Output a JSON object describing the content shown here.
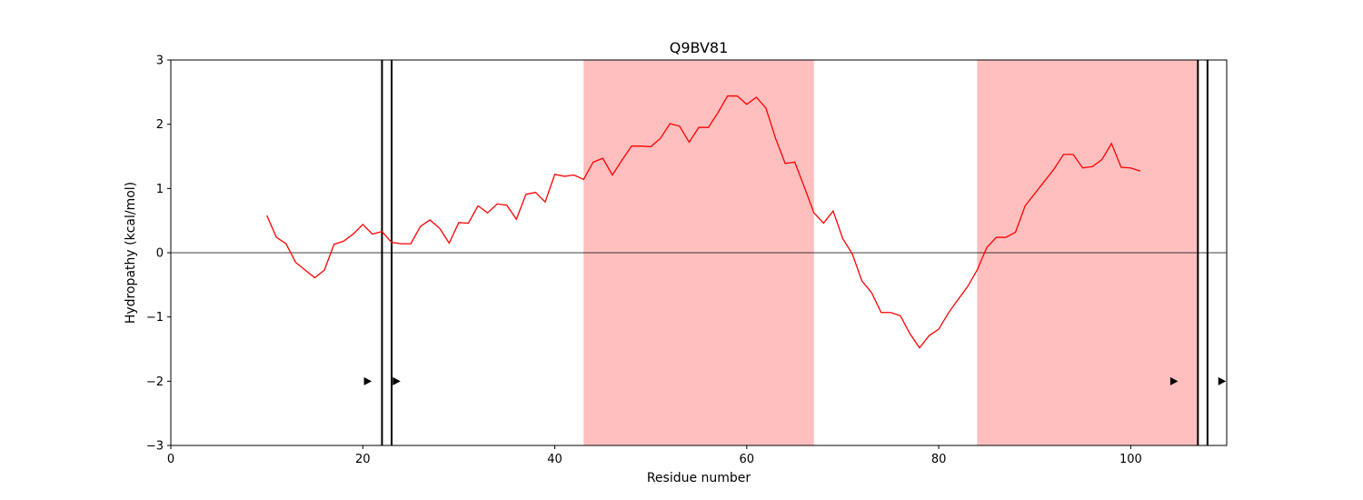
{
  "chart_data": {
    "type": "line",
    "title": "Q9BV81",
    "xlabel": "Residue number",
    "ylabel": "Hydropathy (kcal/mol)",
    "xlim": [
      0,
      110
    ],
    "ylim": [
      -3,
      3
    ],
    "xticks": [
      0,
      20,
      40,
      60,
      80,
      100
    ],
    "yticks": [
      -3,
      -2,
      -1,
      0,
      1,
      2,
      3
    ],
    "grid": false,
    "line_color": "#ff0000",
    "shade_color": "#ffbfbf",
    "zero_line": 0,
    "shaded_regions": [
      [
        43,
        67
      ],
      [
        84,
        107
      ]
    ],
    "vertical_lines": [
      22,
      23,
      107,
      108
    ],
    "arrow_markers": [
      {
        "x": 20.5,
        "y": -2
      },
      {
        "x": 23.5,
        "y": -2
      },
      {
        "x": 104.5,
        "y": -2
      },
      {
        "x": 109.5,
        "y": -2
      }
    ],
    "series": [
      {
        "x": [
          10,
          11,
          12,
          13,
          14,
          15,
          16,
          17,
          18,
          19,
          20,
          21,
          22,
          23,
          24,
          25,
          26,
          27,
          28,
          29,
          30,
          31,
          32,
          33,
          34,
          35,
          36,
          37,
          38,
          39,
          40,
          41,
          42,
          43,
          44,
          45,
          46,
          47,
          48,
          49,
          50,
          51,
          52,
          53,
          54,
          55,
          56,
          57,
          58,
          59,
          60,
          61,
          62,
          63,
          64,
          65,
          66,
          67,
          68,
          69,
          70,
          71,
          72,
          73,
          74,
          75,
          76,
          77,
          78,
          79,
          80,
          81,
          82,
          83,
          84,
          85,
          86,
          87,
          88,
          89,
          90,
          91,
          92,
          93,
          94,
          95,
          96,
          97,
          98,
          99,
          100,
          101
        ],
        "y": [
          0.58,
          0.24,
          0.14,
          -0.15,
          -0.27,
          -0.39,
          -0.27,
          0.13,
          0.18,
          0.29,
          0.44,
          0.29,
          0.33,
          0.16,
          0.14,
          0.14,
          0.41,
          0.51,
          0.38,
          0.15,
          0.47,
          0.46,
          0.73,
          0.62,
          0.76,
          0.74,
          0.52,
          0.91,
          0.94,
          0.79,
          1.22,
          1.19,
          1.21,
          1.14,
          1.41,
          1.47,
          1.21,
          1.44,
          1.66,
          1.66,
          1.65,
          1.78,
          2.01,
          1.97,
          1.72,
          1.95,
          1.95,
          2.18,
          2.44,
          2.44,
          2.31,
          2.42,
          2.25,
          1.78,
          1.39,
          1.41,
          1.02,
          0.62,
          0.46,
          0.65,
          0.22,
          -0.02,
          -0.44,
          -0.62,
          -0.93,
          -0.93,
          -0.98,
          -1.26,
          -1.48,
          -1.29,
          -1.19,
          -0.94,
          -0.73,
          -0.53,
          -0.27,
          0.08,
          0.24,
          0.24,
          0.32,
          0.73,
          0.92,
          1.11,
          1.3,
          1.53,
          1.53,
          1.32,
          1.34,
          1.45,
          1.7,
          1.33,
          1.32,
          1.27
        ]
      }
    ]
  }
}
